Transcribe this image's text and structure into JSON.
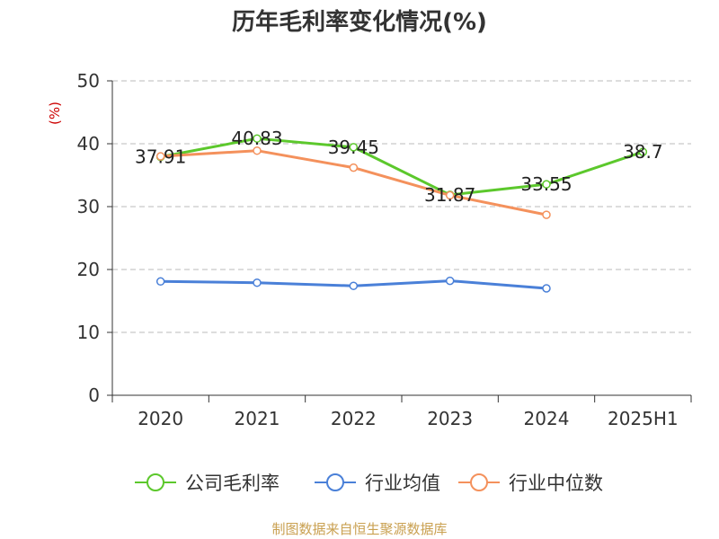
{
  "chart_data": {
    "type": "line",
    "title": "历年毛利率变化情况(%)",
    "ylabel": "(%)",
    "xlabel": "",
    "categories": [
      "2020",
      "2021",
      "2022",
      "2023",
      "2024",
      "2025H1"
    ],
    "ylim": [
      0,
      50
    ],
    "yticks": [
      0,
      10,
      20,
      30,
      40,
      50
    ],
    "grid": true,
    "legend_position": "bottom",
    "series": [
      {
        "name": "公司毛利率",
        "color": "#5cc82c",
        "values": [
          37.91,
          40.83,
          39.45,
          31.87,
          33.55,
          38.7
        ],
        "labels": [
          "37.91",
          "40.83",
          "39.45",
          "31.87",
          "33.55",
          "38.7"
        ]
      },
      {
        "name": "行业均值",
        "color": "#4a80d8",
        "values": [
          18.1,
          17.9,
          17.4,
          18.2,
          17.0,
          null
        ]
      },
      {
        "name": "行业中位数",
        "color": "#f4915c",
        "values": [
          38.0,
          38.9,
          36.2,
          31.8,
          28.7,
          null
        ]
      }
    ]
  },
  "footer": "制图数据来自恒生聚源数据库"
}
